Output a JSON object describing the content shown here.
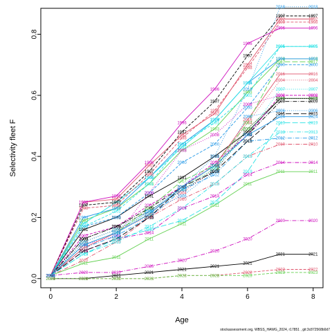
{
  "chart_data": {
    "type": "line",
    "xlabel": "Age",
    "ylabel": "Selectivity fleet F",
    "footer": "stockassessment.org, WBSS_HAWG_2024, r17851 , git:3c872568b0d7",
    "xlim": [
      -0.3,
      8.3
    ],
    "ylim": [
      -0.03,
      0.885
    ],
    "xticks": [
      0,
      2,
      4,
      6,
      8
    ],
    "yticks": [
      0.0,
      0.2,
      0.4,
      0.6,
      0.8
    ],
    "x": [
      0,
      1,
      2,
      3,
      4,
      5,
      6,
      7,
      8
    ],
    "series": [
      {
        "name": "1991",
        "color": "#000000",
        "dash": "",
        "values": [
          0.01,
          0.16,
          0.2,
          0.27,
          0.33,
          0.4,
          0.48,
          0.59,
          0.59
        ]
      },
      {
        "name": "1992",
        "color": "#df536b",
        "dash": "",
        "values": [
          0.01,
          0.25,
          0.26,
          0.37,
          0.47,
          0.54,
          0.7,
          0.85,
          0.85
        ]
      },
      {
        "name": "1993",
        "color": "#61d04f",
        "dash": "",
        "values": [
          0.01,
          0.19,
          0.23,
          0.31,
          0.42,
          0.49,
          0.61,
          0.72,
          0.72
        ]
      },
      {
        "name": "1994",
        "color": "#2297e6",
        "dash": "",
        "values": [
          0.01,
          0.2,
          0.23,
          0.33,
          0.44,
          0.52,
          0.64,
          0.72,
          0.72
        ]
      },
      {
        "name": "1995",
        "color": "#28e2e5",
        "dash": "",
        "values": [
          0.01,
          0.18,
          0.25,
          0.33,
          0.43,
          0.52,
          0.64,
          0.76,
          0.76
        ]
      },
      {
        "name": "1996",
        "color": "#cd0bbc",
        "dash": "",
        "values": [
          0.01,
          0.25,
          0.27,
          0.38,
          0.51,
          0.62,
          0.77,
          0.82,
          0.82
        ]
      },
      {
        "name": "1997",
        "color": "#000000",
        "dash": "4,2",
        "values": [
          0.01,
          0.24,
          0.25,
          0.35,
          0.48,
          0.58,
          0.73,
          0.86,
          0.86
        ]
      },
      {
        "name": "1998",
        "color": "#df536b",
        "dash": "4,2",
        "values": [
          0.01,
          0.23,
          0.24,
          0.34,
          0.46,
          0.55,
          0.69,
          0.84,
          0.84
        ]
      },
      {
        "name": "2000",
        "color": "#2297e6",
        "dash": "4,2",
        "values": [
          0.01,
          0.17,
          0.2,
          0.28,
          0.38,
          0.44,
          0.56,
          0.7,
          0.7
        ]
      },
      {
        "name": "2001",
        "color": "#28e2e5",
        "dash": "4,2",
        "values": [
          0.01,
          0.17,
          0.22,
          0.31,
          0.44,
          0.51,
          0.6,
          0.76,
          0.76
        ]
      },
      {
        "name": "2002",
        "color": "#cd0bbc",
        "dash": "4,2",
        "values": [
          0.01,
          0.14,
          0.17,
          0.24,
          0.3,
          0.38,
          0.47,
          0.6,
          0.6
        ]
      },
      {
        "name": "2003",
        "color": "#000000",
        "dash": "1,2",
        "values": [
          0.01,
          0.13,
          0.17,
          0.22,
          0.29,
          0.35,
          0.49,
          0.59,
          0.59
        ]
      },
      {
        "name": "2004",
        "color": "#df536b",
        "dash": "1,2",
        "values": [
          0.01,
          0.12,
          0.16,
          0.2,
          0.28,
          0.36,
          0.51,
          0.65,
          0.65
        ]
      },
      {
        "name": "2005",
        "color": "#61d04f",
        "dash": "1,2",
        "values": [
          0.01,
          0.12,
          0.16,
          0.21,
          0.3,
          0.36,
          0.49,
          0.59,
          0.59
        ]
      },
      {
        "name": "2006",
        "color": "#2297e6",
        "dash": "1,2",
        "values": [
          0.01,
          0.12,
          0.16,
          0.22,
          0.27,
          0.35,
          0.53,
          0.55,
          0.55
        ]
      },
      {
        "name": "2007",
        "color": "#28e2e5",
        "dash": "1,2",
        "values": [
          0.01,
          0.11,
          0.15,
          0.22,
          0.29,
          0.36,
          0.47,
          0.62,
          0.62
        ]
      },
      {
        "name": "2008",
        "color": "#cd0bbc",
        "dash": "1,2",
        "values": [
          0.01,
          0.11,
          0.14,
          0.28,
          0.42,
          0.47,
          0.57,
          0.6,
          0.6
        ]
      },
      {
        "name": "2009",
        "color": "#000000",
        "dash": "6,2,1,2",
        "values": [
          0.01,
          0.13,
          0.17,
          0.23,
          0.3,
          0.37,
          0.47,
          0.58,
          0.58
        ]
      },
      {
        "name": "2010",
        "color": "#df536b",
        "dash": "6,2,1,2",
        "values": [
          0.01,
          0.06,
          0.12,
          0.2,
          0.26,
          0.31,
          0.4,
          0.44,
          0.44
        ]
      },
      {
        "name": "2011",
        "color": "#61d04f",
        "dash": "",
        "values": [
          0.01,
          0.05,
          0.07,
          0.13,
          0.18,
          0.24,
          0.31,
          0.35,
          0.35
        ]
      },
      {
        "name": "2012",
        "color": "#2297e6",
        "dash": "6,2,1,2",
        "values": [
          0.01,
          0.1,
          0.14,
          0.2,
          0.29,
          0.34,
          0.45,
          0.46,
          0.46
        ]
      },
      {
        "name": "2013",
        "color": "#28e2e5",
        "dash": "6,2,1,2",
        "values": [
          0.01,
          0.08,
          0.12,
          0.17,
          0.23,
          0.31,
          0.4,
          0.48,
          0.48
        ]
      },
      {
        "name": "2014",
        "color": "#cd0bbc",
        "dash": "6,2,1,2",
        "values": [
          0.01,
          0.09,
          0.13,
          0.15,
          0.23,
          0.27,
          0.34,
          0.38,
          0.38
        ]
      },
      {
        "name": "2015",
        "color": "#000000",
        "dash": "8,3",
        "values": [
          0.01,
          0.09,
          0.13,
          0.2,
          0.3,
          0.35,
          0.45,
          0.54,
          0.54
        ]
      },
      {
        "name": "2016",
        "color": "#df536b",
        "dash": "",
        "values": [
          0.01,
          0.1,
          0.15,
          0.21,
          0.3,
          0.37,
          0.52,
          0.67,
          0.67
        ]
      },
      {
        "name": "2017",
        "color": "#61d04f",
        "dash": "8,3",
        "values": [
          0.01,
          0.11,
          0.15,
          0.23,
          0.32,
          0.37,
          0.51,
          0.71,
          0.71
        ]
      },
      {
        "name": "2018",
        "color": "#2297e6",
        "dash": "1,2",
        "values": [
          0.01,
          0.11,
          0.15,
          0.22,
          0.3,
          0.4,
          0.62,
          0.89,
          0.89
        ]
      },
      {
        "name": "2019",
        "color": "#28e2e5",
        "dash": "8,3",
        "values": [
          0.01,
          0.08,
          0.13,
          0.16,
          0.19,
          0.25,
          0.35,
          0.51,
          0.51
        ]
      },
      {
        "name": "2020",
        "color": "#cd0bbc",
        "dash": "6,2,1,2",
        "values": [
          0.01,
          0.02,
          0.02,
          0.04,
          0.06,
          0.09,
          0.13,
          0.19,
          0.19
        ]
      },
      {
        "name": "2021",
        "color": "#000000",
        "dash": "",
        "values": [
          0.0,
          0.0,
          0.01,
          0.02,
          0.03,
          0.04,
          0.05,
          0.08,
          0.08
        ]
      },
      {
        "name": "2022",
        "color": "#df536b",
        "dash": "4,2",
        "values": [
          0.0,
          0.0,
          0.0,
          0.0,
          0.01,
          0.01,
          0.02,
          0.03,
          0.03
        ]
      },
      {
        "name": "2023",
        "color": "#61d04f",
        "dash": "4,2",
        "values": [
          0.0,
          0.0,
          0.0,
          0.0,
          0.01,
          0.01,
          0.01,
          0.02,
          0.02
        ]
      },
      {
        "name": "2024",
        "color": "#2297e6",
        "dash": "",
        "values": [
          0.01,
          0.11,
          0.15,
          0.21,
          0.3,
          0.37,
          0.47,
          0.53,
          0.53
        ]
      }
    ]
  }
}
